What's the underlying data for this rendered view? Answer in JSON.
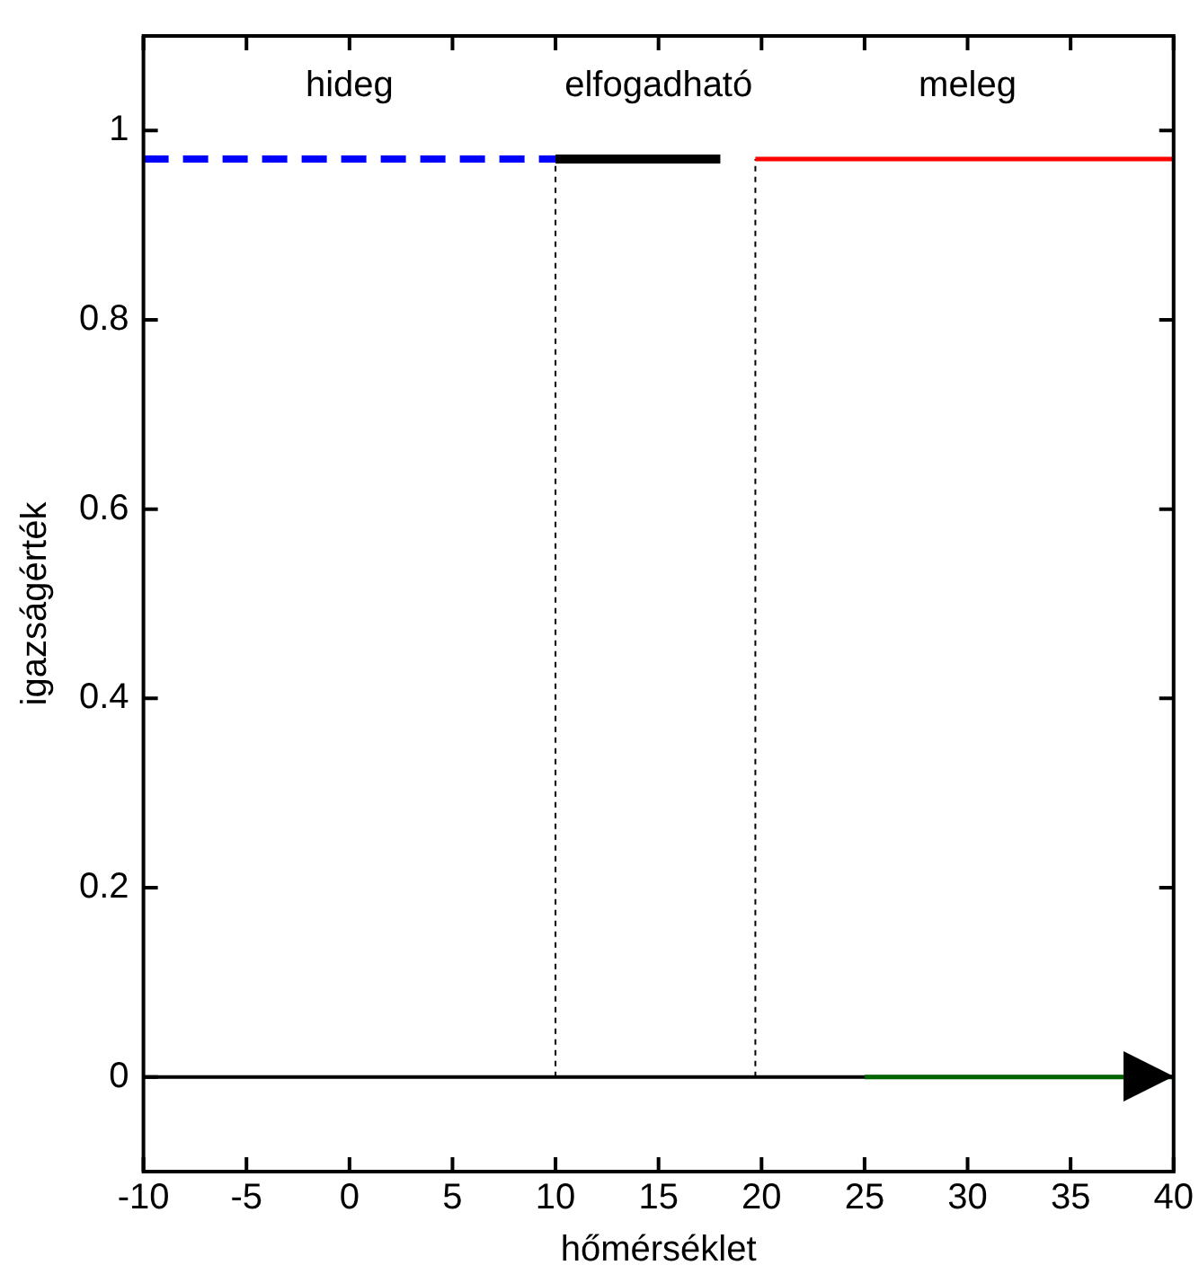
{
  "chart_data": {
    "type": "line",
    "xlabel": "hőmérséklet",
    "ylabel": "igazságérték",
    "xlim": [
      -10,
      40
    ],
    "ylim": [
      -0.1,
      1.1
    ],
    "xticks": [
      -10,
      -5,
      0,
      5,
      10,
      15,
      20,
      25,
      30,
      35,
      40
    ],
    "yticks": [
      0,
      0.2,
      0.4,
      0.6,
      0.8,
      1
    ],
    "grid": false,
    "legend": false,
    "marker": "none",
    "series": [
      {
        "color": "#0000ff",
        "x": [
          -10,
          10
        ],
        "values": [
          0.97,
          0.97
        ],
        "line_style": "dashed"
      },
      {
        "color": "#000000",
        "x": [
          10,
          18
        ],
        "values": [
          0.97,
          0.97
        ],
        "line_style": "solid"
      },
      {
        "color": "#ff0000",
        "x": [
          19.7,
          40
        ],
        "values": [
          0.97,
          0.97
        ],
        "line_style": "solid"
      },
      {
        "color": "#000000",
        "x": [
          10,
          10
        ],
        "values": [
          0,
          0.97
        ],
        "line_style": "dotted"
      },
      {
        "color": "#000000",
        "x": [
          19.7,
          19.7
        ],
        "values": [
          0,
          0.97
        ],
        "line_style": "dotted"
      },
      {
        "color": "#006400",
        "x": [
          25,
          40
        ],
        "values": [
          0,
          0
        ],
        "line_style": "solid"
      }
    ],
    "ref_lines": [
      {
        "axis": "y",
        "value": 0,
        "color": "#000000",
        "line_style": "solid"
      }
    ],
    "annotations": [
      "hideg",
      "elfogadható",
      "meleg"
    ]
  }
}
